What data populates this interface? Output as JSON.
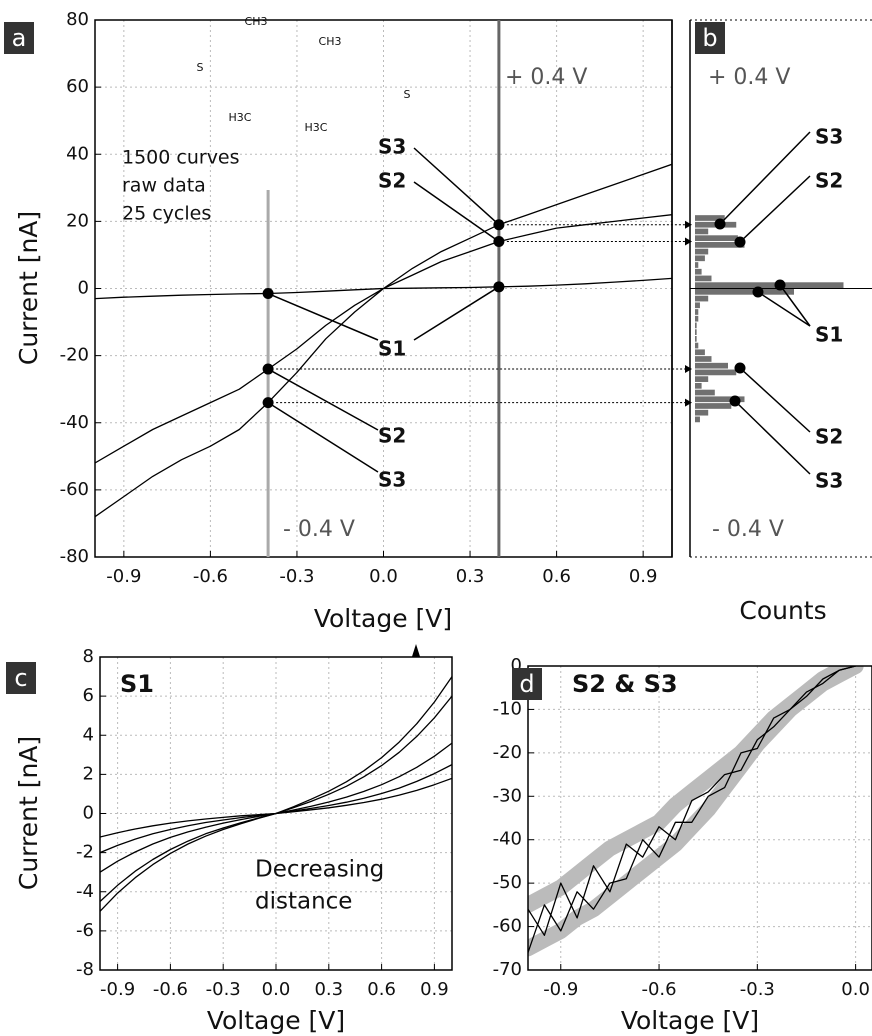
{
  "chart_data": [
    {
      "type": "line",
      "panel_label": "a",
      "xlabel": "Voltage [V]",
      "ylabel": "Current [nA]",
      "xlim": [
        -1,
        1
      ],
      "ylim": [
        -80,
        80
      ],
      "xticks": [
        -0.9,
        -0.6,
        -0.3,
        {
          "value": 0,
          "label": "0.0"
        },
        0.3,
        0.6,
        0.9
      ],
      "yticks": [
        -80,
        -60,
        -40,
        -20,
        0,
        20,
        40,
        60,
        80
      ],
      "grid": true,
      "x": [
        -1,
        -0.9,
        -0.8,
        -0.7,
        -0.6,
        -0.5,
        -0.4,
        -0.3,
        -0.2,
        -0.1,
        0,
        0.1,
        0.2,
        0.3,
        0.4,
        0.5,
        0.6,
        0.7,
        0.8,
        0.9,
        1
      ],
      "series": [
        {
          "name": "S1",
          "color": "#000000",
          "values": [
            -3,
            -2.6,
            -2.3,
            -2,
            -1.8,
            -1.6,
            -1.5,
            -1.2,
            -0.8,
            -0.4,
            0,
            0.1,
            0.2,
            0.3,
            0.5,
            0.7,
            1,
            1.4,
            1.9,
            2.4,
            3
          ]
        },
        {
          "name": "S2",
          "color": "#000000",
          "values": [
            -52,
            -47,
            -42,
            -38,
            -34,
            -30,
            -24,
            -18,
            -11,
            -5,
            0,
            4,
            8,
            11,
            14,
            16,
            18,
            19,
            20,
            21,
            22
          ]
        },
        {
          "name": "S3",
          "color": "#000000",
          "values": [
            -68,
            -62,
            -56,
            -51,
            -47,
            -42,
            -34,
            -25,
            -15,
            -7,
            0,
            6,
            11,
            15,
            19,
            22,
            25,
            28,
            31,
            34,
            37
          ]
        }
      ],
      "vlines": [
        0.4,
        -0.4
      ],
      "annotations": [
        "+ 0.4 V",
        "- 0.4 V",
        "1500 curves",
        "raw data",
        "25 cycles",
        "S3",
        "S2",
        "S1",
        "S2",
        "S3"
      ],
      "molecule_labels": [
        "S",
        "CH3",
        "CH3",
        "H3C",
        "H3C",
        "S"
      ]
    },
    {
      "type": "histogram",
      "panel_label": "b",
      "xlabel": "Counts",
      "orientation": "horizontal",
      "xlim": [
        0,
        100
      ],
      "ylim": [
        -80,
        80
      ],
      "color": "#707070",
      "bins": [
        -40,
        -38,
        -36,
        -34,
        -32,
        -30,
        -28,
        -26,
        -24,
        -22,
        -20,
        -18,
        -16,
        -14,
        -12,
        -10,
        -8,
        -6,
        -4,
        -2,
        0,
        2,
        4,
        6,
        8,
        10,
        12,
        14,
        16,
        18,
        20,
        22
      ],
      "counts": [
        3,
        8,
        22,
        30,
        12,
        4,
        8,
        25,
        20,
        10,
        6,
        2,
        1,
        1,
        1,
        2,
        2,
        3,
        8,
        60,
        90,
        10,
        4,
        2,
        6,
        8,
        30,
        26,
        8,
        25,
        18
      ],
      "annotations": [
        "+ 0.4 V",
        "- 0.4 V",
        "S3",
        "S2",
        "S1",
        "S2",
        "S3"
      ]
    },
    {
      "type": "line",
      "panel_label": "c",
      "title": "S1",
      "ylabel": "Current [nA]",
      "xlabel": "Voltage [V]",
      "xlim": [
        -1,
        1
      ],
      "ylim": [
        -8,
        8
      ],
      "xticks": [
        -0.9,
        -0.6,
        -0.3,
        {
          "value": 0,
          "label": "0.0"
        },
        0.3,
        0.6,
        0.9
      ],
      "yticks": [
        -8,
        -6,
        -4,
        -2,
        0,
        2,
        4,
        6,
        8
      ],
      "grid": true,
      "x": [
        -1,
        -0.9,
        -0.8,
        -0.7,
        -0.6,
        -0.5,
        -0.4,
        -0.3,
        -0.2,
        -0.1,
        0,
        0.1,
        0.2,
        0.3,
        0.4,
        0.5,
        0.6,
        0.7,
        0.8,
        0.9,
        1
      ],
      "series": [
        {
          "color": "#000000",
          "values": [
            -5,
            -4.07,
            -3.28,
            -2.61,
            -2.04,
            -1.56,
            -1.16,
            -0.82,
            -0.52,
            -0.25,
            0,
            0.35,
            0.73,
            1.14,
            1.62,
            2.19,
            2.86,
            3.65,
            4.59,
            5.7,
            7
          ]
        },
        {
          "color": "#000000",
          "values": [
            -4.5,
            -3.67,
            -2.95,
            -2.35,
            -1.84,
            -1.41,
            -1.04,
            -0.74,
            -0.47,
            -0.23,
            0,
            0.3,
            0.62,
            0.98,
            1.39,
            1.88,
            2.45,
            3.13,
            3.94,
            4.89,
            6
          ]
        },
        {
          "color": "#000000",
          "values": [
            -3,
            -2.44,
            -1.97,
            -1.56,
            -1.22,
            -0.94,
            -0.7,
            -0.49,
            -0.31,
            -0.15,
            0,
            0.18,
            0.37,
            0.59,
            0.84,
            1.13,
            1.47,
            1.88,
            2.36,
            2.93,
            3.6
          ]
        },
        {
          "color": "#000000",
          "values": [
            -2,
            -1.63,
            -1.31,
            -1.04,
            -0.82,
            -0.63,
            -0.46,
            -0.33,
            -0.21,
            -0.1,
            0,
            0.13,
            0.26,
            0.41,
            0.58,
            0.78,
            1.02,
            1.3,
            1.64,
            2.04,
            2.5
          ]
        },
        {
          "color": "#000000",
          "values": [
            -1.2,
            -0.98,
            -0.79,
            -0.63,
            -0.49,
            -0.38,
            -0.28,
            -0.2,
            -0.12,
            -0.06,
            0,
            0.09,
            0.19,
            0.29,
            0.42,
            0.56,
            0.73,
            0.94,
            1.18,
            1.47,
            1.8
          ]
        }
      ],
      "annotations": [
        "Decreasing",
        "distance"
      ]
    },
    {
      "type": "line",
      "panel_label": "d",
      "title": "S2 & S3",
      "xlabel": "Voltage [V]",
      "xlim": [
        -1,
        0.05
      ],
      "ylim": [
        -70,
        0
      ],
      "xticks": [
        -0.9,
        -0.6,
        -0.3,
        {
          "value": 0,
          "label": "0.0"
        }
      ],
      "yticks": [
        0,
        -10,
        -20,
        -30,
        -40,
        -50,
        -60,
        -70
      ],
      "grid": true,
      "x": [
        -1,
        -0.95,
        -0.9,
        -0.85,
        -0.8,
        -0.75,
        -0.7,
        -0.65,
        -0.6,
        -0.55,
        -0.5,
        -0.45,
        -0.4,
        -0.35,
        -0.3,
        -0.25,
        -0.2,
        -0.15,
        -0.1,
        -0.05,
        0
      ],
      "series": [
        {
          "color": "#bbbbbb",
          "band": true,
          "values": [
            -55,
            -53,
            -51,
            -48,
            -45,
            -42,
            -40,
            -38,
            -36,
            -32,
            -29,
            -26,
            -23,
            -20,
            -16,
            -12,
            -9,
            -6,
            -3,
            -1,
            0
          ]
        },
        {
          "color": "#bbbbbb",
          "band": true,
          "values": [
            -65,
            -63,
            -61,
            -58,
            -56,
            -53,
            -50,
            -47,
            -44,
            -41,
            -37,
            -33,
            -28,
            -23,
            -18,
            -14,
            -10,
            -7,
            -4,
            -2,
            0
          ]
        },
        {
          "color": "#000000",
          "values": [
            -56,
            -62,
            -50,
            -58,
            -46,
            -52,
            -41,
            -44,
            -37,
            -40,
            -31,
            -29,
            -25,
            -24,
            -17,
            -14,
            -10,
            -7,
            -3,
            -1,
            0
          ]
        },
        {
          "color": "#000000",
          "values": [
            -66,
            -55,
            -61,
            -52,
            -56,
            -50,
            -49,
            -40,
            -44,
            -36,
            -36,
            -30,
            -28,
            -20,
            -19,
            -12,
            -10,
            -6,
            -4,
            -1,
            0
          ]
        }
      ]
    }
  ]
}
